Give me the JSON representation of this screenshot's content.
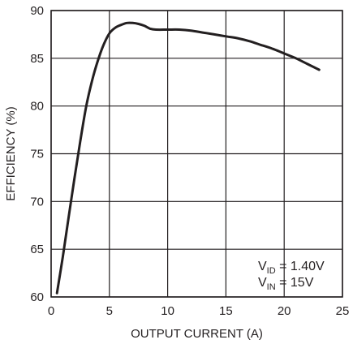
{
  "chart_data": {
    "type": "line",
    "title": "",
    "xlabel": "OUTPUT CURRENT (A)",
    "ylabel": "EFFICIENCY (%)",
    "xlim": [
      0,
      25
    ],
    "ylim": [
      60,
      90
    ],
    "xticks": [
      0,
      5,
      10,
      15,
      20,
      25
    ],
    "yticks": [
      60,
      65,
      70,
      75,
      80,
      85,
      90
    ],
    "grid": true,
    "legend": "none",
    "colors": {
      "line": "#231f20",
      "grid": "#231f20",
      "frame": "#231f20",
      "background": "#ffffff"
    },
    "series": [
      {
        "x": [
          0.5,
          1.0,
          1.5,
          2.0,
          2.5,
          3.0,
          3.5,
          4.0,
          4.5,
          5.0,
          5.5,
          6.0,
          6.5,
          7.0,
          7.5,
          8.0,
          8.5,
          9.0,
          10.0,
          11.0,
          12.0,
          13.0,
          14.0,
          15.0,
          16.0,
          17.0,
          18.0,
          19.0,
          20.0,
          21.0,
          22.0,
          23.0
        ],
        "y": [
          60.4,
          64.2,
          68.3,
          72.4,
          76.3,
          79.9,
          82.6,
          84.7,
          86.4,
          87.6,
          88.2,
          88.5,
          88.7,
          88.7,
          88.6,
          88.4,
          88.1,
          88.0,
          88.0,
          88.0,
          87.9,
          87.7,
          87.5,
          87.3,
          87.1,
          86.8,
          86.4,
          86.0,
          85.5,
          85.0,
          84.4,
          83.8
        ]
      }
    ],
    "annotations": [
      {
        "main": "V",
        "sub": "ID",
        "rest": " = 1.40V"
      },
      {
        "main": "V",
        "sub": "IN",
        "rest": " = 15V"
      }
    ]
  }
}
